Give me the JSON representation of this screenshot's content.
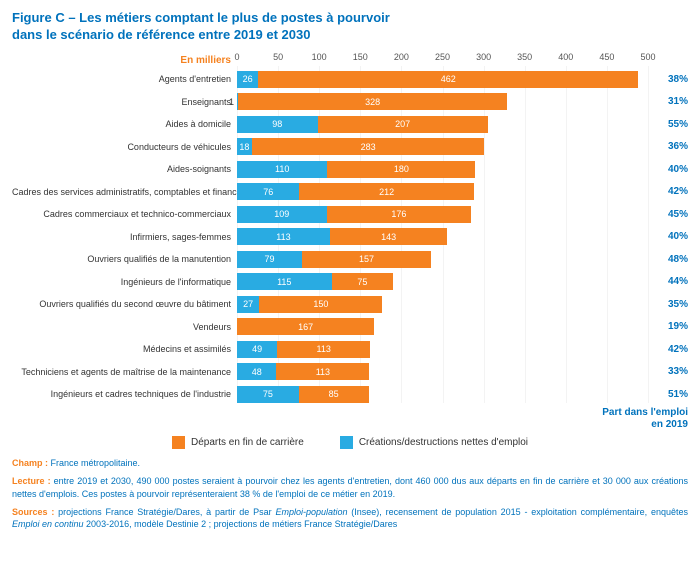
{
  "title_line1": "Figure C – Les métiers comptant le plus de postes à pourvoir",
  "title_line2": "dans le scénario de référence entre 2019 et 2030",
  "unit_label": "En milliers",
  "xmax": 500,
  "xtick_step": 50,
  "xticks": [
    "0",
    "50",
    "100",
    "150",
    "200",
    "250",
    "300",
    "350",
    "400",
    "450",
    "500"
  ],
  "colors": {
    "orange": "#f58220",
    "blue": "#29abe2",
    "title": "#0072bc",
    "pct": "#0072bc",
    "bg": "#ffffff"
  },
  "part_label_l1": "Part dans l'emploi",
  "part_label_l2": "en 2019",
  "legend": {
    "orange_label": "Départs en fin de carrière",
    "blue_label": "Créations/destructions nettes d'emploi"
  },
  "rows": [
    {
      "label": "Agents d'entretien",
      "blue": 26,
      "orange": 462,
      "pct": "38%",
      "blue_txt": "26",
      "orange_txt": "462"
    },
    {
      "label": "Enseignants",
      "blue": 1,
      "orange": 328,
      "pct": "31%",
      "blue_txt": "1",
      "orange_txt": "328",
      "blue_txt_outside": true
    },
    {
      "label": "Aides à domicile",
      "blue": 98,
      "orange": 207,
      "pct": "55%",
      "blue_txt": "98",
      "orange_txt": "207"
    },
    {
      "label": "Conducteurs de véhicules",
      "blue": 18,
      "orange": 283,
      "pct": "36%",
      "blue_txt": "18",
      "orange_txt": "283"
    },
    {
      "label": "Aides-soignants",
      "blue": 110,
      "orange": 180,
      "pct": "40%",
      "blue_txt": "110",
      "orange_txt": "180"
    },
    {
      "label": "Cadres des services administratifs, comptables et financiers",
      "blue": 76,
      "orange": 212,
      "pct": "42%",
      "blue_txt": "76",
      "orange_txt": "212"
    },
    {
      "label": "Cadres commerciaux et technico-commerciaux",
      "blue": 109,
      "orange": 176,
      "pct": "45%",
      "blue_txt": "109",
      "orange_txt": "176"
    },
    {
      "label": "Infirmiers, sages-femmes",
      "blue": 113,
      "orange": 143,
      "pct": "40%",
      "blue_txt": "113",
      "orange_txt": "143"
    },
    {
      "label": "Ouvriers qualifiés de la manutention",
      "blue": 79,
      "orange": 157,
      "pct": "48%",
      "blue_txt": "79",
      "orange_txt": "157"
    },
    {
      "label": "Ingénieurs de l'informatique",
      "blue": 115,
      "orange": 75,
      "pct": "44%",
      "blue_txt": "115",
      "orange_txt": "75"
    },
    {
      "label": "Ouvriers qualifiés du second œuvre du bâtiment",
      "blue": 27,
      "orange": 150,
      "pct": "35%",
      "blue_txt": "27",
      "orange_txt": "150"
    },
    {
      "label": "Vendeurs",
      "blue": 0,
      "orange": 167,
      "pct": "19%",
      "blue_txt": "",
      "orange_txt": "167"
    },
    {
      "label": "Médecins et assimilés",
      "blue": 49,
      "orange": 113,
      "pct": "42%",
      "blue_txt": "49",
      "orange_txt": "113"
    },
    {
      "label": "Techniciens et agents de maîtrise de la maintenance",
      "blue": 48,
      "orange": 113,
      "pct": "33%",
      "blue_txt": "48",
      "orange_txt": "113"
    },
    {
      "label": "Ingénieurs et cadres techniques de l'industrie",
      "blue": 75,
      "orange": 85,
      "pct": "51%",
      "blue_txt": "75",
      "orange_txt": "85"
    }
  ],
  "champ_k": "Champ :",
  "champ_b": " France métropolitaine.",
  "lecture_k": "Lecture :",
  "lecture_b": " entre 2019 et 2030, 490 000 postes seraient à pourvoir chez les agents d'entretien, dont 460 000 dus aux départs en fin de carrière et 30 000 aux créations nettes d'emplois. Ces postes à pourvoir représenteraient 38 % de l'emploi de ce métier en 2019.",
  "sources_k": "Sources :",
  "sources_b1": " projections France Stratégie/Dares, à partir de Psar ",
  "sources_em1": "Emploi-population",
  "sources_b2": " (Insee), recensement de population 2015 - exploitation complémentaire, enquêtes ",
  "sources_em2": "Emploi en continu",
  "sources_b3": " 2003-2016, modèle Destinie 2 ; projections de métiers France Stratégie/Dares"
}
